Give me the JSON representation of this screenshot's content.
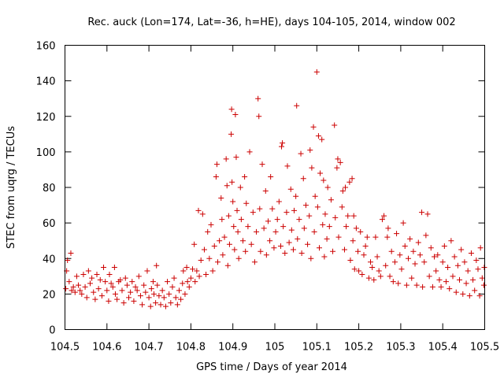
{
  "chart_data": {
    "type": "scatter",
    "title": "Rec. auck (Lon=174, Lat=-36, h=HE), days 104-105, 2014, window 002",
    "xlabel": "GPS time / Days of year 2014",
    "ylabel": "STEC from uqrg / TECUs",
    "xlim": [
      104.5,
      105.5
    ],
    "ylim": [
      0,
      160
    ],
    "xticks": [
      "104.5",
      "104.6",
      "104.7",
      "104.8",
      "104.9",
      "105",
      "105.1",
      "105.2",
      "105.3",
      "105.4",
      "105.5"
    ],
    "yticks": [
      "0",
      "20",
      "40",
      "60",
      "80",
      "100",
      "120",
      "140",
      "160"
    ],
    "grid": false,
    "marker": "+",
    "color": "#cc0000",
    "series": [
      {
        "name": "STEC",
        "points": [
          [
            104.502,
            23
          ],
          [
            104.504,
            33
          ],
          [
            104.506,
            39
          ],
          [
            104.51,
            27
          ],
          [
            104.514,
            43
          ],
          [
            104.516,
            22
          ],
          [
            104.52,
            24
          ],
          [
            104.524,
            21
          ],
          [
            104.528,
            30
          ],
          [
            104.532,
            25
          ],
          [
            104.536,
            22
          ],
          [
            104.54,
            20
          ],
          [
            104.544,
            31
          ],
          [
            104.548,
            24
          ],
          [
            104.552,
            18
          ],
          [
            104.556,
            33
          ],
          [
            104.56,
            26
          ],
          [
            104.564,
            29
          ],
          [
            104.568,
            21
          ],
          [
            104.572,
            17
          ],
          [
            104.576,
            31
          ],
          [
            104.58,
            23
          ],
          [
            104.584,
            28
          ],
          [
            104.588,
            19
          ],
          [
            104.592,
            35
          ],
          [
            104.596,
            27
          ],
          [
            104.6,
            22
          ],
          [
            104.604,
            16
          ],
          [
            104.606,
            31
          ],
          [
            104.61,
            26
          ],
          [
            104.614,
            24
          ],
          [
            104.618,
            35
          ],
          [
            104.62,
            20
          ],
          [
            104.624,
            17
          ],
          [
            104.628,
            27
          ],
          [
            104.632,
            28
          ],
          [
            104.636,
            22
          ],
          [
            104.64,
            15
          ],
          [
            104.644,
            29
          ],
          [
            104.648,
            25
          ],
          [
            104.652,
            18
          ],
          [
            104.656,
            21
          ],
          [
            104.66,
            27
          ],
          [
            104.664,
            16
          ],
          [
            104.668,
            24
          ],
          [
            104.672,
            22
          ],
          [
            104.676,
            30
          ],
          [
            104.68,
            19
          ],
          [
            104.684,
            14
          ],
          [
            104.688,
            25
          ],
          [
            104.692,
            21
          ],
          [
            104.696,
            33
          ],
          [
            104.7,
            18
          ],
          [
            104.704,
            13
          ],
          [
            104.706,
            23
          ],
          [
            104.71,
            27
          ],
          [
            104.712,
            20
          ],
          [
            104.716,
            15
          ],
          [
            104.718,
            36
          ],
          [
            104.72,
            25
          ],
          [
            104.724,
            19
          ],
          [
            104.728,
            14
          ],
          [
            104.732,
            22
          ],
          [
            104.736,
            18
          ],
          [
            104.74,
            13
          ],
          [
            104.744,
            27
          ],
          [
            104.748,
            20
          ],
          [
            104.752,
            15
          ],
          [
            104.756,
            24
          ],
          [
            104.76,
            29
          ],
          [
            104.764,
            18
          ],
          [
            104.768,
            14
          ],
          [
            104.772,
            22
          ],
          [
            104.776,
            17
          ],
          [
            104.78,
            26
          ],
          [
            104.782,
            33
          ],
          [
            104.786,
            20
          ],
          [
            104.79,
            35
          ],
          [
            104.792,
            27
          ],
          [
            104.796,
            24
          ],
          [
            104.8,
            29
          ],
          [
            104.804,
            34
          ],
          [
            104.808,
            48
          ],
          [
            104.81,
            27
          ],
          [
            104.814,
            33
          ],
          [
            104.818,
            67
          ],
          [
            104.82,
            30
          ],
          [
            104.824,
            39
          ],
          [
            104.828,
            65
          ],
          [
            104.832,
            45
          ],
          [
            104.836,
            31
          ],
          [
            104.84,
            55
          ],
          [
            104.844,
            40
          ],
          [
            104.848,
            59
          ],
          [
            104.852,
            33
          ],
          [
            104.856,
            47
          ],
          [
            104.86,
            86
          ],
          [
            104.862,
            93
          ],
          [
            104.864,
            38
          ],
          [
            104.868,
            50
          ],
          [
            104.872,
            74
          ],
          [
            104.874,
            62
          ],
          [
            104.876,
            42
          ],
          [
            104.88,
            52
          ],
          [
            104.884,
            96
          ],
          [
            104.886,
            81
          ],
          [
            104.888,
            36
          ],
          [
            104.89,
            64
          ],
          [
            104.892,
            48
          ],
          [
            104.896,
            110
          ],
          [
            104.897,
            124
          ],
          [
            104.898,
            83
          ],
          [
            104.9,
            72
          ],
          [
            104.902,
            58
          ],
          [
            104.904,
            45
          ],
          [
            104.906,
            121
          ],
          [
            104.908,
            97
          ],
          [
            104.91,
            67
          ],
          [
            104.912,
            55
          ],
          [
            104.914,
            40
          ],
          [
            104.918,
            80
          ],
          [
            104.92,
            62
          ],
          [
            104.924,
            50
          ],
          [
            104.928,
            86
          ],
          [
            104.93,
            44
          ],
          [
            104.932,
            71
          ],
          [
            104.936,
            58
          ],
          [
            104.94,
            100
          ],
          [
            104.944,
            48
          ],
          [
            104.948,
            66
          ],
          [
            104.952,
            38
          ],
          [
            104.956,
            55
          ],
          [
            104.96,
            130
          ],
          [
            104.962,
            120
          ],
          [
            104.964,
            68
          ],
          [
            104.966,
            44
          ],
          [
            104.97,
            93
          ],
          [
            104.974,
            57
          ],
          [
            104.978,
            78
          ],
          [
            104.98,
            42
          ],
          [
            104.984,
            61
          ],
          [
            104.988,
            50
          ],
          [
            104.99,
            86
          ],
          [
            104.994,
            68
          ],
          [
            104.998,
            46
          ],
          [
            105.002,
            55
          ],
          [
            105.006,
            62
          ],
          [
            105.01,
            72
          ],
          [
            105.014,
            47
          ],
          [
            105.016,
            103
          ],
          [
            105.018,
            105
          ],
          [
            105.02,
            58
          ],
          [
            105.024,
            43
          ],
          [
            105.028,
            66
          ],
          [
            105.03,
            92
          ],
          [
            105.034,
            49
          ],
          [
            105.038,
            79
          ],
          [
            105.04,
            56
          ],
          [
            105.044,
            45
          ],
          [
            105.046,
            67
          ],
          [
            105.05,
            75
          ],
          [
            105.052,
            126
          ],
          [
            105.054,
            51
          ],
          [
            105.058,
            62
          ],
          [
            105.062,
            99
          ],
          [
            105.064,
            43
          ],
          [
            105.068,
            85
          ],
          [
            105.07,
            57
          ],
          [
            105.074,
            70
          ],
          [
            105.078,
            48
          ],
          [
            105.082,
            64
          ],
          [
            105.084,
            101
          ],
          [
            105.086,
            40
          ],
          [
            105.088,
            91
          ],
          [
            105.092,
            114
          ],
          [
            105.094,
            55
          ],
          [
            105.096,
            75
          ],
          [
            105.1,
            145
          ],
          [
            105.102,
            69
          ],
          [
            105.104,
            109
          ],
          [
            105.106,
            46
          ],
          [
            105.108,
            88
          ],
          [
            105.112,
            107
          ],
          [
            105.114,
            59
          ],
          [
            105.116,
            84
          ],
          [
            105.118,
            41
          ],
          [
            105.12,
            65
          ],
          [
            105.124,
            51
          ],
          [
            105.126,
            80
          ],
          [
            105.13,
            58
          ],
          [
            105.134,
            73
          ],
          [
            105.138,
            44
          ],
          [
            105.142,
            115
          ],
          [
            105.144,
            63
          ],
          [
            105.148,
            91
          ],
          [
            105.15,
            96
          ],
          [
            105.152,
            52
          ],
          [
            105.156,
            94
          ],
          [
            105.16,
            69
          ],
          [
            105.162,
            78
          ],
          [
            105.166,
            45
          ],
          [
            105.168,
            80
          ],
          [
            105.17,
            58
          ],
          [
            105.174,
            64
          ],
          [
            105.178,
            83
          ],
          [
            105.18,
            39
          ],
          [
            105.184,
            85
          ],
          [
            105.186,
            50
          ],
          [
            105.188,
            64
          ],
          [
            105.19,
            34
          ],
          [
            105.194,
            57
          ],
          [
            105.198,
            44
          ],
          [
            105.2,
            33
          ],
          [
            105.204,
            55
          ],
          [
            105.208,
            31
          ],
          [
            105.212,
            42
          ],
          [
            105.216,
            47
          ],
          [
            105.22,
            52
          ],
          [
            105.224,
            29
          ],
          [
            105.228,
            38
          ],
          [
            105.232,
            35
          ],
          [
            105.236,
            28
          ],
          [
            105.24,
            52
          ],
          [
            105.244,
            41
          ],
          [
            105.248,
            33
          ],
          [
            105.252,
            30
          ],
          [
            105.256,
            62
          ],
          [
            105.26,
            64
          ],
          [
            105.264,
            36
          ],
          [
            105.268,
            52
          ],
          [
            105.27,
            57
          ],
          [
            105.274,
            30
          ],
          [
            105.278,
            44
          ],
          [
            105.282,
            27
          ],
          [
            105.286,
            38
          ],
          [
            105.29,
            54
          ],
          [
            105.294,
            26
          ],
          [
            105.298,
            42
          ],
          [
            105.302,
            34
          ],
          [
            105.306,
            60
          ],
          [
            105.31,
            47
          ],
          [
            105.314,
            25
          ],
          [
            105.318,
            40
          ],
          [
            105.322,
            51
          ],
          [
            105.326,
            29
          ],
          [
            105.33,
            44
          ],
          [
            105.334,
            37
          ],
          [
            105.338,
            25
          ],
          [
            105.342,
            49
          ],
          [
            105.346,
            42
          ],
          [
            105.35,
            66
          ],
          [
            105.352,
            24
          ],
          [
            105.356,
            38
          ],
          [
            105.36,
            53
          ],
          [
            105.364,
            65
          ],
          [
            105.368,
            30
          ],
          [
            105.372,
            46
          ],
          [
            105.376,
            24
          ],
          [
            105.38,
            41
          ],
          [
            105.384,
            33
          ],
          [
            105.388,
            42
          ],
          [
            105.392,
            28
          ],
          [
            105.396,
            24
          ],
          [
            105.4,
            38
          ],
          [
            105.404,
            47
          ],
          [
            105.408,
            27
          ],
          [
            105.412,
            35
          ],
          [
            105.416,
            23
          ],
          [
            105.42,
            50
          ],
          [
            105.424,
            30
          ],
          [
            105.428,
            41
          ],
          [
            105.432,
            21
          ],
          [
            105.436,
            36
          ],
          [
            105.44,
            28
          ],
          [
            105.444,
            45
          ],
          [
            105.448,
            20
          ],
          [
            105.452,
            38
          ],
          [
            105.456,
            26
          ],
          [
            105.46,
            33
          ],
          [
            105.464,
            19
          ],
          [
            105.468,
            43
          ],
          [
            105.472,
            28
          ],
          [
            105.476,
            22
          ],
          [
            105.48,
            39
          ],
          [
            105.484,
            34
          ],
          [
            105.488,
            19
          ],
          [
            105.49,
            46
          ],
          [
            105.494,
            29
          ],
          [
            105.498,
            25
          ],
          [
            105.499,
            35
          ]
        ]
      }
    ]
  }
}
